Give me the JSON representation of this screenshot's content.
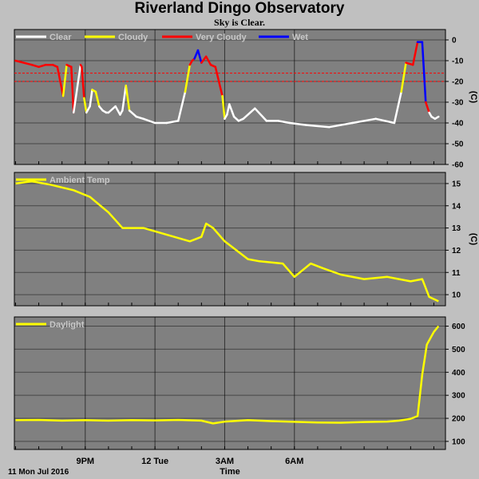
{
  "title": "Riverland Dingo Observatory",
  "subtitle": "Sky is Clear.",
  "colors": {
    "background": "#c0c0c0",
    "plot_bg": "#808080",
    "clear": "#ffffff",
    "cloudy": "#ffff00",
    "very_cloudy": "#ff0000",
    "wet": "#0000ff",
    "threshold": "#ff0000",
    "legend_text": "#c8c8c8"
  },
  "chart_data": [
    {
      "type": "line",
      "name": "sky",
      "unit": "(C)",
      "ylim": [
        -60,
        5
      ],
      "ytick_labels": [
        "0",
        "-10",
        "-20",
        "-30",
        "-40",
        "-50",
        "-60"
      ],
      "yticks": [
        0,
        -10,
        -20,
        -30,
        -40,
        -50,
        -60
      ],
      "grid": true,
      "legend_placement": "top-left",
      "legend": [
        "Clear",
        "Cloudy",
        "Very Cloudy",
        "Wet"
      ],
      "thresholds": [
        -16,
        -20
      ],
      "x_hours_since_1800": [
        0,
        0.7,
        1.0,
        1.3,
        1.6,
        1.8,
        2.05,
        2.2,
        2.4,
        2.5,
        2.8,
        2.85,
        2.95,
        3.05,
        3.2,
        3.3,
        3.45,
        3.6,
        3.75,
        3.9,
        4.0,
        4.3,
        4.5,
        4.6,
        4.75,
        4.9,
        5.2,
        5.5,
        6.0,
        6.5,
        7.0,
        7.3,
        7.5,
        7.6,
        7.7,
        7.85,
        8.0,
        8.2,
        8.4,
        8.6,
        8.9,
        9.0,
        9.1,
        9.2,
        9.4,
        9.6,
        9.8,
        10.3,
        10.8,
        11.3,
        11.8,
        12.5,
        13.5,
        14.5,
        15.5,
        16.3,
        16.6,
        16.8,
        17.1,
        17.3,
        17.5,
        17.65,
        17.8,
        17.9,
        18.05,
        18.2
      ],
      "sky_temp_c": [
        -10,
        -12,
        -13,
        -12,
        -12,
        -13,
        -27,
        -12,
        -13,
        -35,
        -12,
        -13,
        -28,
        -35,
        -32,
        -24,
        -25,
        -32,
        -34,
        -35,
        -35,
        -32,
        -36,
        -34,
        -22,
        -34,
        -37,
        -38,
        -40,
        -40,
        -39,
        -25,
        -12,
        -10,
        -9,
        -5,
        -11,
        -8,
        -12,
        -13,
        -27,
        -38,
        -36,
        -31,
        -37,
        -39,
        -38,
        -33,
        -39,
        -39,
        -40,
        -41,
        -42,
        -40,
        -38,
        -40,
        -25,
        -11,
        -12,
        -1,
        -1,
        -30,
        -35,
        -37,
        -38,
        -37
      ],
      "condition": [
        "very_cloudy",
        "very_cloudy",
        "very_cloudy",
        "very_cloudy",
        "very_cloudy",
        "very_cloudy",
        "cloudy",
        "very_cloudy",
        "very_cloudy",
        "clear",
        "very_cloudy",
        "very_cloudy",
        "cloudy",
        "clear",
        "clear",
        "cloudy",
        "cloudy",
        "clear",
        "clear",
        "clear",
        "clear",
        "clear",
        "clear",
        "clear",
        "cloudy",
        "clear",
        "clear",
        "clear",
        "clear",
        "clear",
        "clear",
        "cloudy",
        "very_cloudy",
        "very_cloudy",
        "wet",
        "wet",
        "very_cloudy",
        "very_cloudy",
        "very_cloudy",
        "very_cloudy",
        "cloudy",
        "clear",
        "clear",
        "clear",
        "clear",
        "clear",
        "clear",
        "clear",
        "clear",
        "clear",
        "clear",
        "clear",
        "clear",
        "clear",
        "clear",
        "clear",
        "cloudy",
        "very_cloudy",
        "very_cloudy",
        "wet",
        "wet",
        "very_cloudy",
        "clear",
        "clear",
        "clear",
        "clear"
      ]
    },
    {
      "type": "line",
      "name": "ambient",
      "unit": "(C)",
      "ylim": [
        9.5,
        15.5
      ],
      "ytick_labels": [
        "15",
        "14",
        "13",
        "12",
        "11",
        "10"
      ],
      "yticks": [
        15,
        14,
        13,
        12,
        11,
        10
      ],
      "grid": true,
      "legend_placement": "top-left",
      "legend": [
        "Ambient Temp"
      ],
      "x_hours_since_1800": [
        0,
        0.7,
        1.5,
        2.5,
        3.2,
        4.0,
        4.6,
        5.5,
        6.5,
        7.5,
        8.0,
        8.2,
        8.5,
        9.0,
        10.0,
        10.5,
        11.5,
        12.0,
        12.7,
        13.2,
        14.0,
        15.0,
        16.0,
        16.5,
        17.0,
        17.5,
        17.8,
        18.2
      ],
      "ambient_temp_c": [
        15.0,
        15.1,
        14.95,
        14.7,
        14.4,
        13.7,
        13.0,
        13.0,
        12.7,
        12.4,
        12.6,
        13.2,
        13.0,
        12.4,
        11.6,
        11.5,
        11.4,
        10.8,
        11.4,
        11.2,
        10.9,
        10.7,
        10.8,
        10.7,
        10.6,
        10.7,
        9.9,
        9.7
      ]
    },
    {
      "type": "line",
      "name": "daylight",
      "unit": "",
      "ylim": [
        65,
        640
      ],
      "ytick_labels": [
        "600",
        "500",
        "400",
        "300",
        "200",
        "100"
      ],
      "yticks": [
        600,
        500,
        400,
        300,
        200,
        100
      ],
      "grid": true,
      "legend_placement": "top-left",
      "legend": [
        "Daylight"
      ],
      "x_hours_since_1800": [
        0,
        1,
        2,
        3,
        4,
        5,
        6,
        7,
        8,
        8.5,
        9,
        10,
        11,
        12,
        13,
        14,
        15,
        16,
        16.5,
        17.0,
        17.3,
        17.5,
        17.7,
        18.0,
        18.2
      ],
      "daylight": [
        192,
        193,
        190,
        192,
        190,
        192,
        191,
        193,
        190,
        178,
        186,
        192,
        188,
        185,
        182,
        181,
        184,
        186,
        190,
        198,
        210,
        390,
        520,
        575,
        600
      ]
    }
  ],
  "x_axis": {
    "label": "Time",
    "date_label": "11 Mon Jul 2016",
    "tick_labels": [
      "9PM",
      "12 Tue",
      "3AM",
      "6AM"
    ],
    "ticks_hours_since_1800": [
      3,
      6,
      9,
      12
    ],
    "minor_tick_hours": [
      0,
      1,
      2,
      3,
      4,
      5,
      6,
      7,
      8,
      9,
      10,
      11,
      12,
      13,
      14,
      15,
      16,
      17,
      18
    ],
    "range_hours_since_1800": [
      -0.05,
      18.5
    ]
  }
}
